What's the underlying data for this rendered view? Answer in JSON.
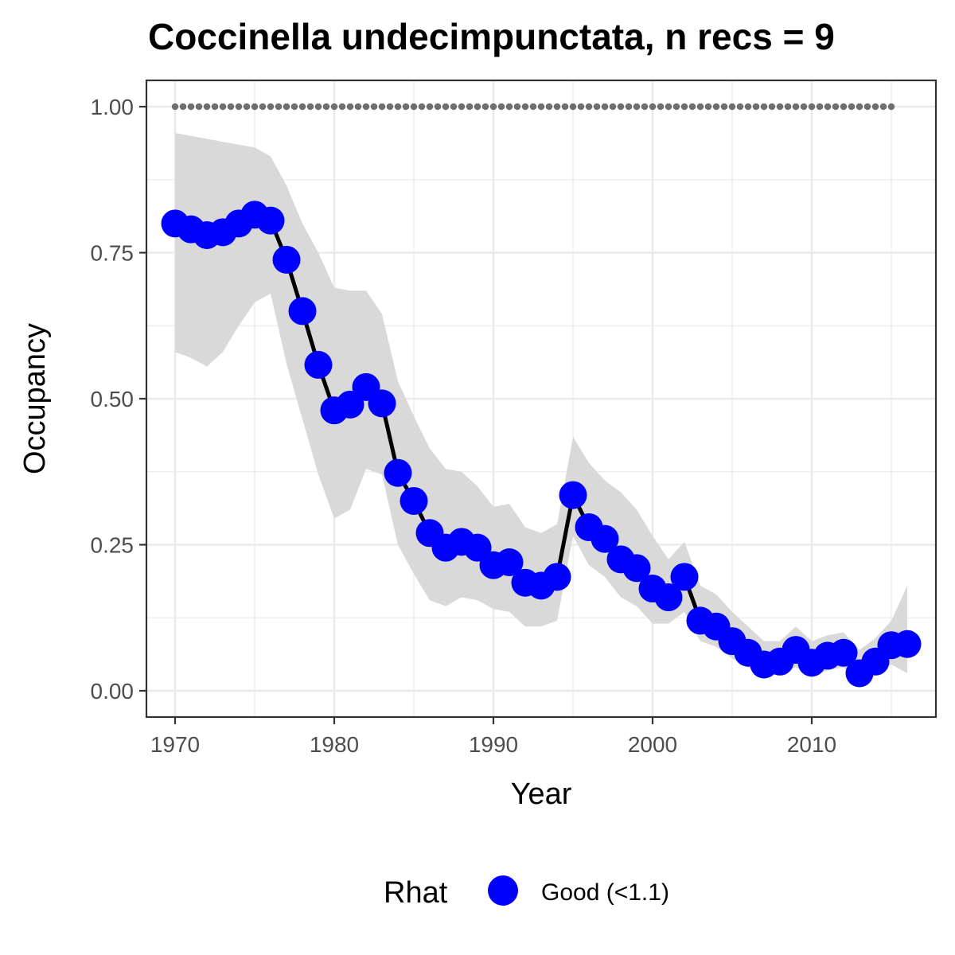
{
  "chart_data": {
    "type": "line",
    "title": "Coccinella undecimpunctata, n recs = 9",
    "xlabel": "Year",
    "ylabel": "Occupancy",
    "xlim": [
      1968.2,
      2017.8
    ],
    "ylim": [
      -0.045,
      1.045
    ],
    "x_ticks": [
      1970,
      1980,
      1990,
      2000,
      2010
    ],
    "x_tick_labels": [
      "1970",
      "1980",
      "1990",
      "2000",
      "2010"
    ],
    "y_ticks": [
      0,
      0.25,
      0.5,
      0.75,
      1.0
    ],
    "y_tick_labels": [
      "0.00",
      "0.25",
      "0.50",
      "0.75",
      "1.00"
    ],
    "grid": true,
    "legend": {
      "title": "Rhat",
      "position": "bottom",
      "entries": [
        "Good (<1.1)"
      ]
    },
    "colors": {
      "points": "#0000ff",
      "line": "#000000",
      "ribbon": "#d9d9d9",
      "reference": "#6e6e6e",
      "panel_border": "#333333",
      "grid": "#ebebeb"
    },
    "series": [
      {
        "x": [
          1970,
          1971,
          1972,
          1973,
          1974,
          1975,
          1976,
          1977,
          1978,
          1979,
          1980,
          1981,
          1982,
          1983,
          1984,
          1985,
          1986,
          1987,
          1988,
          1989,
          1990,
          1991,
          1992,
          1993,
          1994,
          1995,
          1996,
          1997,
          1998,
          1999,
          2000,
          2001,
          2002,
          2003,
          2004,
          2005,
          2006,
          2007,
          2008,
          2009,
          2010,
          2011,
          2012,
          2013,
          2014,
          2015,
          2016
        ],
        "y": [
          0.8,
          0.79,
          0.78,
          0.785,
          0.8,
          0.815,
          0.805,
          0.738,
          0.65,
          0.558,
          0.48,
          0.49,
          0.52,
          0.492,
          0.373,
          0.325,
          0.27,
          0.245,
          0.255,
          0.245,
          0.215,
          0.22,
          0.185,
          0.18,
          0.195,
          0.335,
          0.28,
          0.26,
          0.225,
          0.21,
          0.175,
          0.16,
          0.195,
          0.12,
          0.11,
          0.085,
          0.065,
          0.045,
          0.05,
          0.07,
          0.048,
          0.06,
          0.065,
          0.03,
          0.05,
          0.078,
          0.08
        ],
        "lower": [
          0.58,
          0.57,
          0.555,
          0.58,
          0.625,
          0.665,
          0.68,
          0.56,
          0.465,
          0.37,
          0.295,
          0.31,
          0.38,
          0.37,
          0.25,
          0.2,
          0.155,
          0.145,
          0.16,
          0.155,
          0.14,
          0.135,
          0.11,
          0.11,
          0.12,
          0.265,
          0.215,
          0.195,
          0.16,
          0.145,
          0.115,
          0.115,
          0.135,
          0.085,
          0.075,
          0.055,
          0.04,
          0.025,
          0.03,
          0.04,
          0.025,
          0.035,
          0.04,
          0.015,
          0.03,
          0.045,
          0.03
        ],
        "upper": [
          0.955,
          0.95,
          0.945,
          0.94,
          0.935,
          0.93,
          0.915,
          0.865,
          0.8,
          0.75,
          0.69,
          0.685,
          0.685,
          0.645,
          0.53,
          0.47,
          0.415,
          0.38,
          0.375,
          0.35,
          0.315,
          0.32,
          0.28,
          0.27,
          0.285,
          0.435,
          0.39,
          0.36,
          0.34,
          0.31,
          0.265,
          0.225,
          0.255,
          0.18,
          0.165,
          0.135,
          0.11,
          0.085,
          0.085,
          0.11,
          0.085,
          0.095,
          0.1,
          0.07,
          0.09,
          0.12,
          0.18
        ]
      }
    ],
    "reference_line": {
      "y": 1.0,
      "x": [
        1970,
        1971,
        1972,
        1973,
        1974,
        1975,
        1976,
        1977,
        1978,
        1979,
        1980,
        1981,
        1982,
        1983,
        1984,
        1985,
        1986,
        1987,
        1988,
        1989,
        1990,
        1991,
        1992,
        1993,
        1994,
        1995,
        1996,
        1997,
        1998,
        1999,
        2000,
        2001,
        2002,
        2003,
        2004,
        2005,
        2006,
        2007,
        2008,
        2009,
        2010,
        2011,
        2012,
        2013,
        2014,
        2015
      ]
    }
  }
}
